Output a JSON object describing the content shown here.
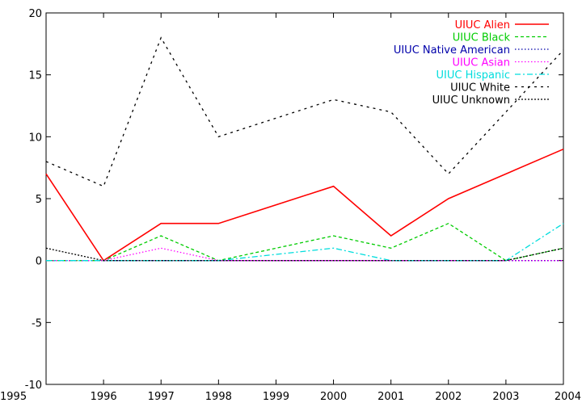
{
  "chart_data": {
    "type": "line",
    "title": "",
    "xlabel": "",
    "ylabel": "",
    "x": [
      1995,
      1996,
      1997,
      1998,
      1999,
      2000,
      2001,
      2002,
      2003,
      2004
    ],
    "xlim": [
      1995,
      2004
    ],
    "ylim": [
      -10,
      20
    ],
    "xticks": [
      "1995",
      "1996",
      "1997",
      "1998",
      "1999",
      "2000",
      "2001",
      "2002",
      "2003",
      "2004"
    ],
    "yticks": [
      "-10",
      "-5",
      "0",
      "5",
      "10",
      "15",
      "20"
    ],
    "grid": false,
    "legend_position": "top-right",
    "series": [
      {
        "name": "UIUC Alien",
        "color": "#ff0000",
        "dash": "solid",
        "values": [
          7,
          0,
          3,
          3,
          null,
          6,
          2,
          5,
          null,
          9
        ]
      },
      {
        "name": "UIUC Black",
        "color": "#00cc00",
        "dash": "dashed",
        "values": [
          0,
          0,
          2,
          0,
          null,
          2,
          1,
          3,
          0,
          1
        ]
      },
      {
        "name": "UIUC Native American",
        "color": "#0000aa",
        "dash": "dotted",
        "values": [
          0,
          0,
          0,
          0,
          null,
          0,
          0,
          0,
          0,
          0
        ]
      },
      {
        "name": "UIUC Asian",
        "color": "#ff00ff",
        "dash": "dotted",
        "values": [
          0,
          0,
          1,
          0,
          null,
          0,
          0,
          0,
          0,
          0
        ]
      },
      {
        "name": "UIUC Hispanic",
        "color": "#00dddd",
        "dash": "dashdot",
        "values": [
          0,
          0,
          0,
          0,
          null,
          1,
          0,
          0,
          0,
          3
        ]
      },
      {
        "name": "UIUC White",
        "color": "#000000",
        "dash": "sparse",
        "values": [
          8,
          6,
          18,
          10,
          null,
          13,
          12,
          7,
          null,
          17
        ]
      },
      {
        "name": "UIUC Unknown",
        "color": "#000000",
        "dash": "dense",
        "values": [
          1,
          0,
          0,
          0,
          null,
          0,
          0,
          0,
          0,
          1
        ]
      }
    ]
  }
}
